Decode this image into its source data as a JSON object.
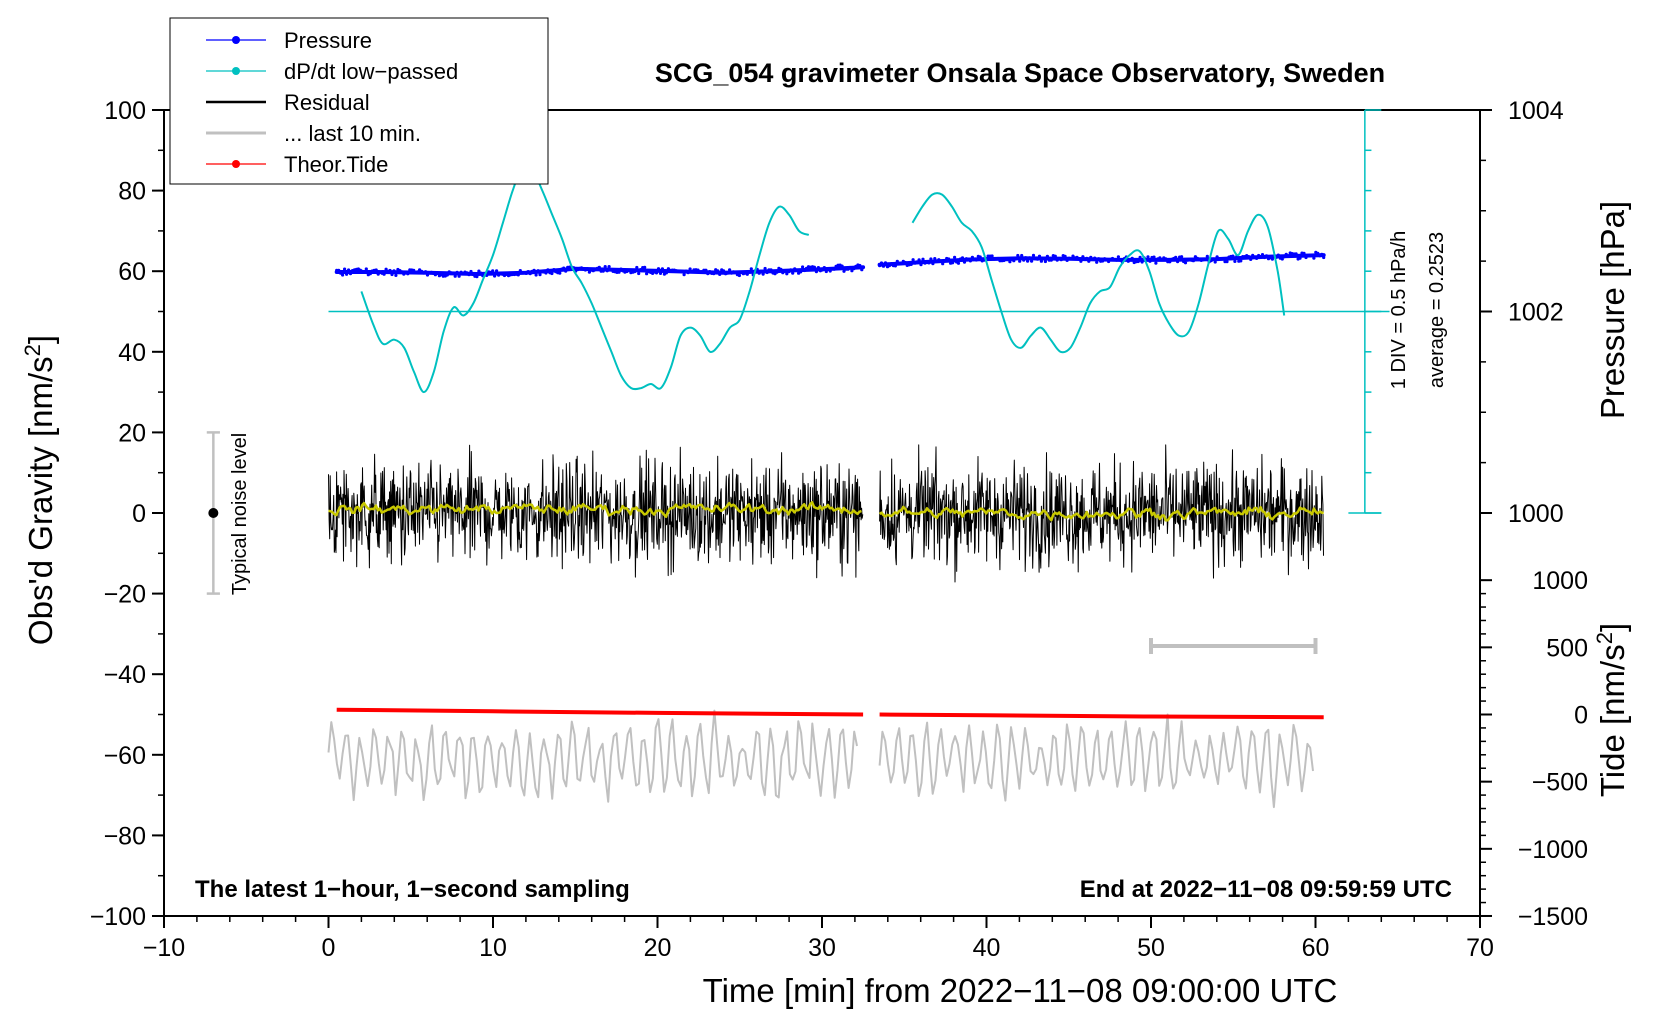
{
  "chart_data": {
    "type": "line",
    "title": "SCG_054 gravimeter Onsala Space Observatory, Sweden",
    "xlabel": "Time [min] from 2022−11−08 09:00:00 UTC",
    "ylabel_left": "Obs'd Gravity [nm/s",
    "ylabel_left_sup": "2",
    "ylabel_left_end": "]",
    "ylabel_right_top": "Pressure [hPa]",
    "ylabel_right_bottom": "Tide [nm/s",
    "ylabel_right_bottom_sup": "2",
    "ylabel_right_bottom_end": "]",
    "xlim": [
      -10,
      70
    ],
    "ylim": [
      -100,
      100
    ],
    "x_ticks": [
      "−10",
      "0",
      "10",
      "20",
      "30",
      "40",
      "50",
      "60",
      "70"
    ],
    "x_tick_values": [
      -10,
      0,
      10,
      20,
      30,
      40,
      50,
      60,
      70
    ],
    "y_ticks": [
      "100",
      "80",
      "60",
      "40",
      "20",
      "0",
      "−20",
      "−40",
      "−60",
      "−80",
      "−100"
    ],
    "y_tick_values": [
      100,
      80,
      60,
      40,
      20,
      0,
      -20,
      -40,
      -60,
      -80,
      -100
    ],
    "pressure_axis": {
      "ticks": [
        "1004",
        "1002",
        "1000"
      ],
      "tick_values": [
        1004,
        1002,
        1000
      ],
      "gravity_at_1002": 50,
      "gravity_per_hPa": 25
    },
    "tide_axis": {
      "ticks": [
        "1000",
        "500",
        "0",
        "−500",
        "−1000",
        "−1500"
      ],
      "tick_values": [
        1000,
        500,
        0,
        -500,
        -1000,
        -1500
      ],
      "gravity_at_0": -50,
      "gravity_per_unit": 0.03333
    },
    "dpdt_scale": {
      "label_div": "1 DIV = 0.5 hPa/h",
      "label_avg": "average = 0.2523",
      "x": 63,
      "y_from": 0,
      "y_to": 100,
      "div_step": 10
    },
    "noise_bar": {
      "label": "Typical noise level",
      "x": -7,
      "center": 0,
      "half_range": 20
    },
    "window_bar": {
      "x_from": 50,
      "x_to": 60,
      "y": -33
    },
    "bottom_left_note": "The latest 1−hour, 1−second sampling",
    "bottom_right_note": "End at 2022−11−08 09:59:59 UTC",
    "legend": [
      {
        "label": "Pressure",
        "color": "#0000ff",
        "marker": true
      },
      {
        "label": "dP/dt low−passed",
        "color": "#00c0c0",
        "marker": true
      },
      {
        "label": "Residual",
        "color": "#000000",
        "marker": false
      },
      {
        "label": "... last 10 min.",
        "color": "#c0c0c0",
        "marker": false
      },
      {
        "label": "Theor.Tide",
        "color": "#ff0000",
        "marker": true
      }
    ],
    "series": [
      {
        "name": "Pressure",
        "color": "#0000ff",
        "segments": [
          {
            "x": [
              0.5,
              3,
              6,
              9,
              12,
              15,
              18,
              21,
              24,
              27,
              30,
              32.5
            ],
            "y": [
              59.8,
              59.8,
              59.6,
              59.3,
              59.6,
              60.6,
              60.3,
              60.0,
              59.6,
              60.0,
              60.5,
              61.0
            ]
          },
          {
            "x": [
              33.5,
              36,
              39,
              42,
              45,
              48,
              51,
              54,
              57,
              60.5
            ],
            "y": [
              61.6,
              62.2,
              62.9,
              63.2,
              63.1,
              62.8,
              62.8,
              63.0,
              63.6,
              64.0
            ]
          }
        ]
      },
      {
        "name": "dP/dt low-passed",
        "color": "#00c0c0",
        "segments": [
          {
            "x": [
              2,
              2.7,
              3.3,
              4,
              4.6,
              5.2,
              5.8,
              6.4,
              7,
              7.6,
              8.2,
              8.8,
              9.4,
              10,
              10.6,
              11.2,
              11.8,
              12.4,
              13,
              13.6,
              14.2,
              14.8,
              15.4,
              16,
              16.6,
              17.2,
              17.8,
              18.4,
              19,
              19.6,
              20.2,
              20.8,
              21.4,
              22,
              22.6,
              23.2,
              23.8,
              24.4,
              25,
              25.6,
              26.2,
              26.8,
              27.4,
              28,
              28.6,
              29.2
            ],
            "y": [
              55,
              47,
              42,
              43,
              41,
              35,
              30,
              35,
              45,
              51,
              49,
              52,
              58,
              64,
              72,
              80,
              86,
              85,
              80,
              74,
              68,
              61,
              57,
              52,
              46,
              40,
              34,
              31,
              31,
              32,
              31,
              36,
              44,
              46,
              44,
              40,
              42,
              46,
              48,
              55,
              64,
              72,
              76,
              74,
              70,
              69
            ]
          },
          {
            "x": [
              35.5,
              36.1,
              36.7,
              37.3,
              37.9,
              38.5,
              39.1,
              39.7,
              40.3,
              40.9,
              41.5,
              42.1,
              42.7,
              43.3,
              43.9,
              44.5,
              45.1,
              45.7,
              46.3,
              46.9,
              47.5,
              48.1,
              48.7,
              49.3,
              49.9,
              50.5,
              51.1,
              51.7,
              52.3,
              52.9,
              53.5,
              54.1,
              54.7,
              55.3,
              55.9,
              56.5,
              57.1,
              57.7,
              58.1
            ],
            "y": [
              72,
              76,
              79,
              79,
              76,
              72,
              70,
              66,
              58,
              50,
              43,
              41,
              44,
              46,
              43,
              40,
              41,
              46,
              52,
              55,
              56,
              61,
              64,
              65,
              60,
              52,
              47,
              44,
              45,
              52,
              62,
              70,
              68,
              64,
              70,
              74,
              71,
              60,
              49
            ]
          }
        ]
      },
      {
        "name": "Residual",
        "color": "#000000",
        "segments": [
          {
            "x_range": [
              0,
              32.5
            ],
            "y_center": 0,
            "amplitude": 14
          },
          {
            "x_range": [
              33.5,
              60.5
            ],
            "y_center": 0,
            "amplitude": 14
          }
        ]
      },
      {
        "name": "Residual smoothed",
        "color": "#c8c800",
        "segments": [
          {
            "x_range": [
              0,
              32.5
            ],
            "y_center": 1,
            "amplitude": 3
          },
          {
            "x_range": [
              33.5,
              60.5
            ],
            "y_center": 0,
            "amplitude": 3
          }
        ]
      },
      {
        "name": "... last 10 min.",
        "color": "#c0c0c0",
        "segments": [
          {
            "x_range": [
              0,
              32.2
            ],
            "y_center": -61,
            "amplitude": 10
          },
          {
            "x_range": [
              33.5,
              60
            ],
            "y_center": -61,
            "amplitude": 10
          }
        ]
      },
      {
        "name": "Theor.Tide",
        "color": "#ff0000",
        "segments": [
          {
            "x": [
              0.5,
              10,
              20,
              32.5
            ],
            "y": [
              -48.8,
              -49.2,
              -49.6,
              -50.0
            ]
          },
          {
            "x": [
              33.5,
              40,
              50,
              60.5
            ],
            "y": [
              -50.0,
              -50.2,
              -50.5,
              -50.7
            ]
          }
        ]
      }
    ]
  }
}
